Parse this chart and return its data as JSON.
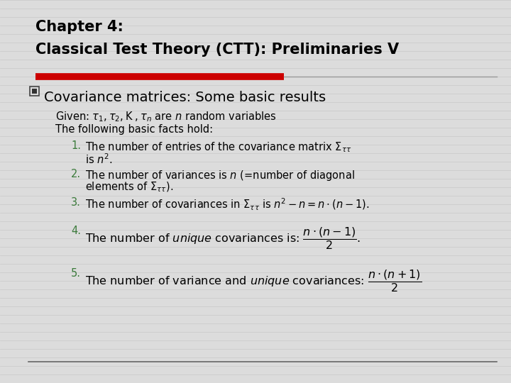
{
  "background_color": "#dcdcdc",
  "title_line1": "Chapter 4:",
  "title_line2": "Classical Test Theory (CTT): Preliminaries V",
  "title_color": "#000000",
  "title_fontsize": 15,
  "red_bar_color": "#cc0000",
  "bullet_color": "#000000",
  "bullet_text": "Covariance matrices: Some basic results",
  "bullet_fontsize": 14,
  "number_color": "#3a7a3a",
  "body_color": "#000000",
  "body_fontsize": 10.5,
  "stripe_color": "#c8c8c8",
  "stripe_linewidth": 6
}
